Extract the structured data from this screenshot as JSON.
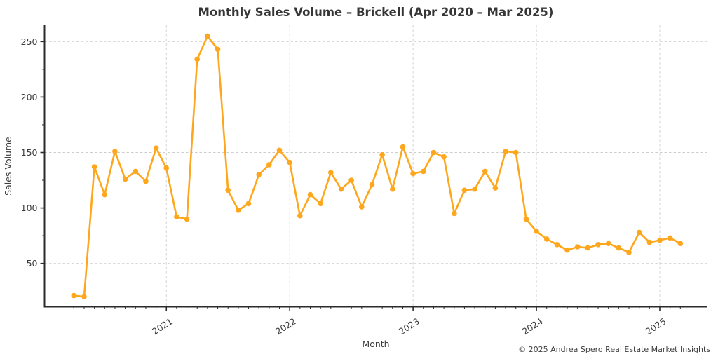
{
  "chart_data": {
    "type": "line",
    "title": "Monthly Sales Volume – Brickell (Apr 2020 – Mar 2025)",
    "xlabel": "Month",
    "ylabel": "Sales Volume",
    "footer": "© 2025 Andrea Spero Real Estate Market Insights",
    "x_tick_labels": [
      "2021",
      "2022",
      "2023",
      "2024",
      "2025"
    ],
    "y_ticks": [
      50,
      100,
      150,
      200,
      250
    ],
    "ylim": [
      11,
      265
    ],
    "grid": "dashed",
    "legend": "none",
    "line_color": "#FFA71C",
    "marker": "circle",
    "months": [
      "2020-04",
      "2020-05",
      "2020-06",
      "2020-07",
      "2020-08",
      "2020-09",
      "2020-10",
      "2020-11",
      "2020-12",
      "2021-01",
      "2021-02",
      "2021-03",
      "2021-04",
      "2021-05",
      "2021-06",
      "2021-07",
      "2021-08",
      "2021-09",
      "2021-10",
      "2021-11",
      "2021-12",
      "2022-01",
      "2022-02",
      "2022-03",
      "2022-04",
      "2022-05",
      "2022-06",
      "2022-07",
      "2022-08",
      "2022-09",
      "2022-10",
      "2022-11",
      "2022-12",
      "2023-01",
      "2023-02",
      "2023-03",
      "2023-04",
      "2023-05",
      "2023-06",
      "2023-07",
      "2023-08",
      "2023-09",
      "2023-10",
      "2023-11",
      "2023-12",
      "2024-01",
      "2024-02",
      "2024-03",
      "2024-04",
      "2024-05",
      "2024-06",
      "2024-07",
      "2024-08",
      "2024-09",
      "2024-10",
      "2024-11",
      "2024-12",
      "2025-01",
      "2025-02",
      "2025-03"
    ],
    "values": [
      21,
      20,
      137,
      112,
      151,
      126,
      133,
      124,
      154,
      136,
      92,
      90,
      234,
      255,
      243,
      116,
      98,
      104,
      130,
      139,
      152,
      141,
      93,
      112,
      104,
      132,
      117,
      125,
      101,
      121,
      148,
      117,
      155,
      131,
      133,
      150,
      146,
      95,
      116,
      117,
      133,
      118,
      151,
      150,
      90,
      79,
      72,
      67,
      62,
      65,
      64,
      67,
      68,
      64,
      60,
      78,
      69,
      71,
      73,
      68
    ]
  }
}
